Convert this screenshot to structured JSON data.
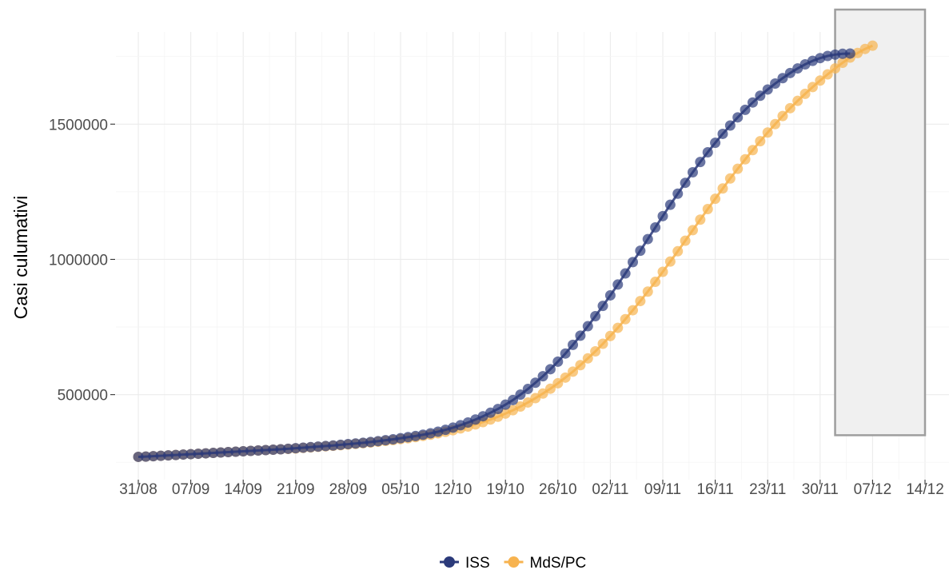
{
  "chart_data": {
    "type": "line",
    "title": "",
    "xlabel": "",
    "ylabel": "Casi culumativi",
    "x_ticks": [
      "31/08",
      "07/09",
      "14/09",
      "21/09",
      "28/09",
      "05/10",
      "12/10",
      "19/10",
      "26/10",
      "02/11",
      "09/11",
      "16/11",
      "23/11",
      "30/11",
      "07/12",
      "14/12"
    ],
    "y_ticks": [
      500000,
      1000000,
      1500000
    ],
    "ylim": [
      230000,
      1820000
    ],
    "xlim": [
      "2020-08-31",
      "2020-12-14"
    ],
    "grid": true,
    "legend_position": "bottom",
    "highlight_region": {
      "x": [
        "2020-12-02",
        "2020-12-14"
      ],
      "y": [
        350000,
        1820000
      ]
    },
    "series": [
      {
        "name": "ISS",
        "color": "#2b3a7a",
        "start_date": "2020-08-31",
        "values": [
          270000,
          271000,
          272500,
          274000,
          275500,
          277000,
          278500,
          280000,
          281500,
          283000,
          284500,
          286000,
          287500,
          289000,
          290500,
          292000,
          293500,
          295000,
          296500,
          298000,
          300000,
          302000,
          304000,
          306000,
          308000,
          310000,
          312000,
          314500,
          317000,
          319500,
          322000,
          325000,
          328000,
          331500,
          335000,
          339000,
          343000,
          347000,
          352000,
          357000,
          363000,
          370000,
          378000,
          387000,
          397000,
          408000,
          420000,
          433000,
          447000,
          463000,
          480000,
          500000,
          521000,
          544000,
          568000,
          594000,
          622000,
          652000,
          684000,
          718000,
          753000,
          790000,
          828000,
          867000,
          907000,
          948000,
          990000,
          1032000,
          1075000,
          1118000,
          1160000,
          1202000,
          1243000,
          1283000,
          1322000,
          1360000,
          1396000,
          1431000,
          1464000,
          1495000,
          1525000,
          1553000,
          1580000,
          1605000,
          1628000,
          1650000,
          1670000,
          1689000,
          1706000,
          1721000,
          1734000,
          1744000,
          1752000,
          1757000,
          1760000,
          1761000
        ]
      },
      {
        "name": "MdS/PC",
        "color": "#f7b34f",
        "start_date": "2020-08-31",
        "values": [
          270000,
          271000,
          272500,
          274000,
          275500,
          277000,
          278500,
          280000,
          281500,
          283000,
          284500,
          286000,
          287500,
          289000,
          290500,
          292000,
          293500,
          295000,
          296500,
          298000,
          299500,
          301000,
          303000,
          305000,
          307000,
          309000,
          311000,
          313000,
          315500,
          318000,
          320500,
          323000,
          326000,
          329000,
          332000,
          335500,
          339000,
          343000,
          347500,
          352000,
          357000,
          362500,
          368500,
          375000,
          382000,
          390000,
          398500,
          408000,
          418500,
          430000,
          442500,
          456000,
          471000,
          487000,
          504000,
          522000,
          542000,
          563000,
          585000,
          609000,
          634000,
          660000,
          688000,
          717000,
          747000,
          779000,
          812000,
          846000,
          881000,
          917000,
          954000,
          992000,
          1030000,
          1069000,
          1108000,
          1147000,
          1186000,
          1224000,
          1262000,
          1299000,
          1335000,
          1370000,
          1404000,
          1437000,
          1469000,
          1500000,
          1530000,
          1559000,
          1586000,
          1612000,
          1637000,
          1661000,
          1684000,
          1706000,
          1727000,
          1746000,
          1763000,
          1778000,
          1790000
        ]
      }
    ]
  }
}
